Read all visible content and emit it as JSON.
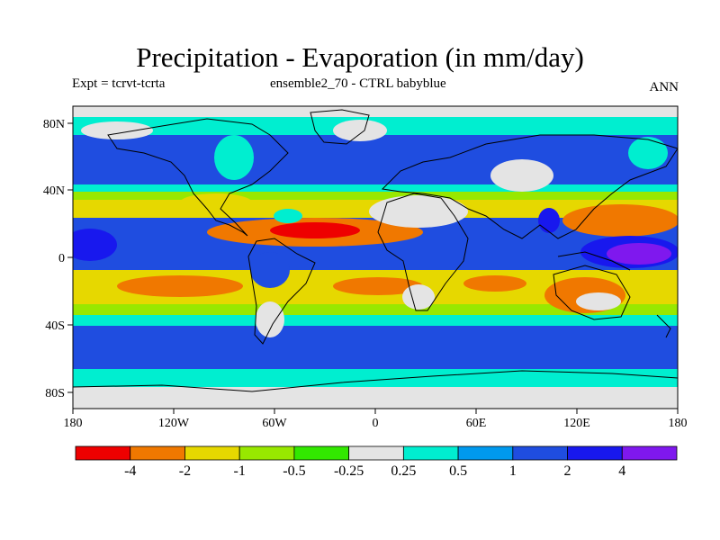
{
  "title": "Precipitation - Evaporation (in mm/day)",
  "subtitle_left": "Expt = tcrvt-tcrta",
  "subtitle_center": "ensemble2_70 - CTRL babyblue",
  "subtitle_right": "ANN",
  "axes": {
    "x_ticks": [
      "180",
      "120W",
      "60W",
      "0",
      "60E",
      "120E",
      "180"
    ],
    "y_ticks": [
      "80N",
      "40N",
      "0",
      "40S",
      "80S"
    ],
    "lon_range": [
      -180,
      180
    ],
    "lat_range": [
      -90,
      90
    ]
  },
  "colorbar": {
    "colors": [
      "#ee0000",
      "#f07800",
      "#e6d800",
      "#98e800",
      "#32e800",
      "#e4e4e4",
      "#00eed0",
      "#0099ee",
      "#1f4de0",
      "#1818ee",
      "#7f18ee"
    ],
    "labels": [
      "-4",
      "-2",
      "-1",
      "-0.5",
      "-0.25",
      "0.25",
      "0.5",
      "1",
      "2",
      "4"
    ]
  }
}
